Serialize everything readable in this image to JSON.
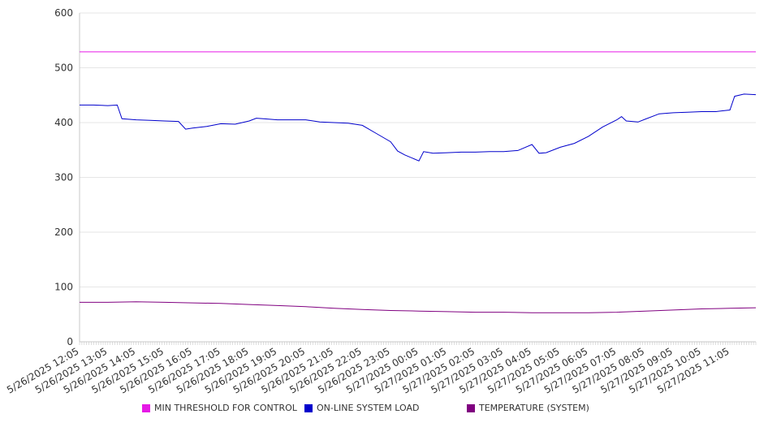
{
  "chart_data": {
    "type": "line",
    "ylim": [
      0,
      600
    ],
    "yticks": [
      0,
      100,
      200,
      300,
      400,
      500,
      600
    ],
    "x_tick_labels": [
      "5/26/2025 12:05",
      "5/26/2025 13:05",
      "5/26/2025 14:05",
      "5/26/2025 15:05",
      "5/26/2025 16:05",
      "5/26/2025 17:05",
      "5/26/2025 18:05",
      "5/26/2025 19:05",
      "5/26/2025 20:05",
      "5/26/2025 21:05",
      "5/26/2025 22:05",
      "5/26/2025 23:05",
      "5/27/2025 00:05",
      "5/27/2025 01:05",
      "5/27/2025 02:05",
      "5/27/2025 03:05",
      "5/27/2025 04:05",
      "5/27/2025 05:05",
      "5/27/2025 06:05",
      "5/27/2025 07:05",
      "5/27/2025 08:05",
      "5/27/2025 09:05",
      "5/27/2025 10:05",
      "5/27/2025 11:05"
    ],
    "x_range": [
      "5/26/2025 12:05",
      "5/27/2025 12:00"
    ],
    "grid": true,
    "legend_position": "bottom",
    "series": [
      {
        "name": "MIN THRESHOLD FOR CONTROL",
        "color": "#e619e6",
        "points": [
          [
            "5/26/2025 12:05",
            529
          ],
          [
            "5/27/2025 12:00",
            529
          ]
        ]
      },
      {
        "name": "ON-LINE SYSTEM LOAD",
        "color": "#0000cc",
        "points": [
          [
            "5/26/2025 12:05",
            432
          ],
          [
            "5/26/2025 12:35",
            432
          ],
          [
            "5/26/2025 13:05",
            431
          ],
          [
            "5/26/2025 13:25",
            432
          ],
          [
            "5/26/2025 13:35",
            407
          ],
          [
            "5/26/2025 14:05",
            405
          ],
          [
            "5/26/2025 14:35",
            404
          ],
          [
            "5/26/2025 15:05",
            403
          ],
          [
            "5/26/2025 15:35",
            402
          ],
          [
            "5/26/2025 15:50",
            388
          ],
          [
            "5/26/2025 16:05",
            390
          ],
          [
            "5/26/2025 16:35",
            393
          ],
          [
            "5/26/2025 17:05",
            398
          ],
          [
            "5/26/2025 17:35",
            397
          ],
          [
            "5/26/2025 18:05",
            403
          ],
          [
            "5/26/2025 18:20",
            408
          ],
          [
            "5/26/2025 18:35",
            407
          ],
          [
            "5/26/2025 19:05",
            405
          ],
          [
            "5/26/2025 19:35",
            405
          ],
          [
            "5/26/2025 20:05",
            405
          ],
          [
            "5/26/2025 20:35",
            401
          ],
          [
            "5/26/2025 21:05",
            400
          ],
          [
            "5/26/2025 21:35",
            399
          ],
          [
            "5/26/2025 22:05",
            395
          ],
          [
            "5/26/2025 22:35",
            380
          ],
          [
            "5/26/2025 23:05",
            365
          ],
          [
            "5/26/2025 23:20",
            348
          ],
          [
            "5/26/2025 23:35",
            341
          ],
          [
            "5/27/2025 00:05",
            330
          ],
          [
            "5/27/2025 00:15",
            347
          ],
          [
            "5/27/2025 00:35",
            344
          ],
          [
            "5/27/2025 01:05",
            345
          ],
          [
            "5/27/2025 01:35",
            346
          ],
          [
            "5/27/2025 02:05",
            346
          ],
          [
            "5/27/2025 02:35",
            347
          ],
          [
            "5/27/2025 03:05",
            347
          ],
          [
            "5/27/2025 03:35",
            349
          ],
          [
            "5/27/2025 04:05",
            360
          ],
          [
            "5/27/2025 04:20",
            344
          ],
          [
            "5/27/2025 04:35",
            345
          ],
          [
            "5/27/2025 05:05",
            355
          ],
          [
            "5/27/2025 05:35",
            362
          ],
          [
            "5/27/2025 06:05",
            375
          ],
          [
            "5/27/2025 06:35",
            392
          ],
          [
            "5/27/2025 07:05",
            405
          ],
          [
            "5/27/2025 07:15",
            411
          ],
          [
            "5/27/2025 07:25",
            403
          ],
          [
            "5/27/2025 07:50",
            401
          ],
          [
            "5/27/2025 08:05",
            406
          ],
          [
            "5/27/2025 08:35",
            416
          ],
          [
            "5/27/2025 09:05",
            418
          ],
          [
            "5/27/2025 09:35",
            419
          ],
          [
            "5/27/2025 10:05",
            420
          ],
          [
            "5/27/2025 10:35",
            420
          ],
          [
            "5/27/2025 11:05",
            423
          ],
          [
            "5/27/2025 11:15",
            448
          ],
          [
            "5/27/2025 11:35",
            452
          ],
          [
            "5/27/2025 12:00",
            451
          ]
        ]
      },
      {
        "name": "TEMPERATURE (SYSTEM)",
        "color": "#800080",
        "points": [
          [
            "5/26/2025 12:05",
            72
          ],
          [
            "5/26/2025 13:05",
            72
          ],
          [
            "5/26/2025 14:05",
            73
          ],
          [
            "5/26/2025 15:05",
            72
          ],
          [
            "5/26/2025 16:05",
            71
          ],
          [
            "5/26/2025 17:05",
            70
          ],
          [
            "5/26/2025 18:05",
            68
          ],
          [
            "5/26/2025 19:05",
            66
          ],
          [
            "5/26/2025 20:05",
            64
          ],
          [
            "5/26/2025 21:05",
            61
          ],
          [
            "5/26/2025 22:05",
            59
          ],
          [
            "5/26/2025 23:05",
            57
          ],
          [
            "5/27/2025 00:05",
            56
          ],
          [
            "5/27/2025 01:05",
            55
          ],
          [
            "5/27/2025 02:05",
            54
          ],
          [
            "5/27/2025 03:05",
            54
          ],
          [
            "5/27/2025 04:05",
            53
          ],
          [
            "5/27/2025 05:05",
            53
          ],
          [
            "5/27/2025 06:05",
            53
          ],
          [
            "5/27/2025 07:05",
            54
          ],
          [
            "5/27/2025 08:05",
            56
          ],
          [
            "5/27/2025 09:05",
            58
          ],
          [
            "5/27/2025 10:05",
            60
          ],
          [
            "5/27/2025 11:05",
            61
          ],
          [
            "5/27/2025 12:00",
            62
          ]
        ]
      }
    ]
  }
}
